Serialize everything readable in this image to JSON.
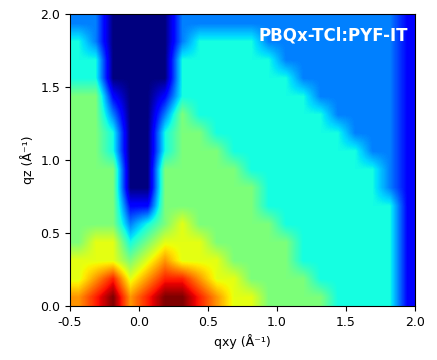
{
  "chart_data": {
    "type": "heatmap",
    "title": "PBQx-TCl:PYF-IT",
    "x_label": "qxy (Å⁻¹)",
    "y_label": "qz (Å⁻¹)",
    "xlim": [
      -0.5,
      2.0
    ],
    "xticks": [
      -0.5,
      0.0,
      0.5,
      1.0,
      1.5,
      2.0
    ],
    "ylim": [
      0.0,
      2.0
    ],
    "yticks": [
      0.0,
      0.5,
      1.0,
      1.5,
      2.0
    ],
    "tick_labels": true,
    "cells": [
      [
        6,
        7,
        8,
        6,
        7,
        8,
        8,
        7,
        6,
        5,
        5,
        4,
        4,
        4,
        4,
        3,
        3,
        3,
        3,
        1
      ],
      [
        5,
        6,
        7,
        5,
        6,
        7,
        7,
        6,
        5,
        5,
        4,
        4,
        4,
        4,
        3,
        3,
        3,
        3,
        3,
        1
      ],
      [
        5,
        5,
        5,
        4,
        5,
        6,
        5,
        5,
        5,
        4,
        4,
        4,
        4,
        3,
        3,
        3,
        3,
        3,
        3,
        1
      ],
      [
        4,
        5,
        5,
        3,
        4,
        5,
        5,
        5,
        4,
        4,
        4,
        4,
        4,
        3,
        3,
        3,
        3,
        3,
        3,
        1
      ],
      [
        4,
        4,
        4,
        2,
        3,
        4,
        5,
        4,
        4,
        4,
        4,
        4,
        3,
        3,
        3,
        3,
        3,
        3,
        3,
        1
      ],
      [
        4,
        4,
        4,
        1,
        1,
        4,
        4,
        4,
        4,
        4,
        4,
        3,
        3,
        3,
        3,
        3,
        3,
        3,
        3,
        1
      ],
      [
        4,
        4,
        4,
        0,
        0,
        4,
        4,
        4,
        4,
        4,
        4,
        3,
        3,
        3,
        3,
        3,
        3,
        3,
        2,
        1
      ],
      [
        4,
        4,
        4,
        0,
        0,
        4,
        4,
        4,
        4,
        4,
        3,
        3,
        3,
        3,
        3,
        3,
        3,
        3,
        2,
        1
      ],
      [
        4,
        4,
        3,
        0,
        0,
        3,
        4,
        4,
        4,
        3,
        3,
        3,
        3,
        3,
        3,
        3,
        3,
        2,
        2,
        1
      ],
      [
        4,
        4,
        3,
        0,
        0,
        3,
        4,
        4,
        3,
        3,
        3,
        3,
        3,
        3,
        3,
        3,
        2,
        2,
        2,
        1
      ],
      [
        4,
        4,
        2,
        0,
        0,
        2,
        4,
        3,
        3,
        3,
        3,
        3,
        3,
        3,
        3,
        2,
        2,
        2,
        2,
        1
      ],
      [
        4,
        4,
        1,
        0,
        0,
        1,
        3,
        3,
        3,
        3,
        3,
        3,
        3,
        3,
        2,
        2,
        2,
        2,
        2,
        1
      ],
      [
        3,
        3,
        0,
        0,
        0,
        0,
        3,
        3,
        3,
        3,
        3,
        3,
        3,
        2,
        2,
        2,
        2,
        2,
        2,
        1
      ],
      [
        3,
        3,
        0,
        0,
        0,
        0,
        3,
        3,
        3,
        3,
        3,
        3,
        2,
        2,
        2,
        2,
        2,
        2,
        2,
        1
      ],
      [
        3,
        2,
        0,
        0,
        0,
        0,
        2,
        3,
        3,
        3,
        3,
        2,
        2,
        2,
        2,
        2,
        2,
        2,
        2,
        1
      ],
      [
        2,
        2,
        0,
        0,
        0,
        0,
        2,
        2,
        2,
        2,
        2,
        2,
        2,
        2,
        2,
        2,
        2,
        2,
        2,
        1
      ]
    ]
  }
}
